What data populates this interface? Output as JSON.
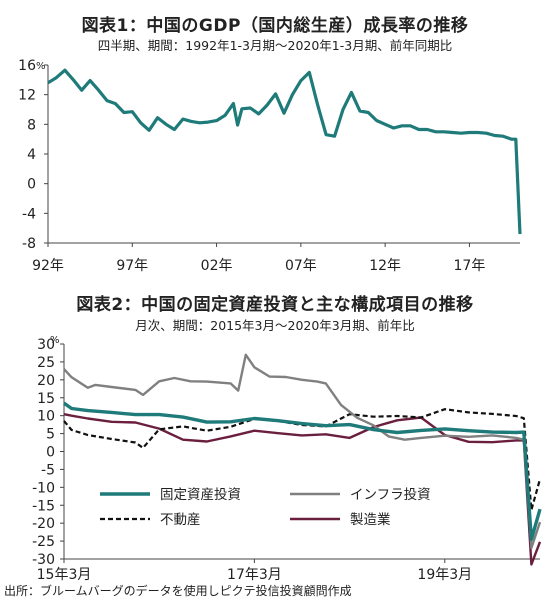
{
  "chart_data": [
    {
      "type": "line",
      "title": "図表1：中国のGDP（国内総生産）成長率の推移",
      "subtitle": "四半期、期間：1992年1-3月期～2020年1-3月期、前年同期比",
      "unit": "%",
      "x_tick_labels": [
        "92年",
        "97年",
        "02年",
        "07年",
        "12年",
        "17年"
      ],
      "y_tick_labels": [
        "16",
        "12",
        "8",
        "4",
        "0",
        "-4",
        "-8"
      ],
      "x_range": [
        1992.0,
        2020.0
      ],
      "ylim": [
        -8,
        16
      ],
      "grid": false,
      "colors": {
        "series": "#1f7a7a"
      },
      "series": [
        {
          "x": [
            1992.0,
            1992.5,
            1993.0,
            1993.5,
            1994.0,
            1994.5,
            1995.0,
            1995.5,
            1996.0,
            1996.5,
            1997.0,
            1997.5,
            1998.0,
            1998.5,
            1999.0,
            1999.5,
            2000.0,
            2000.5,
            2001.0,
            2001.5,
            2002.0,
            2002.5,
            2003.0,
            2003.25,
            2003.5,
            2004.0,
            2004.5,
            2005.0,
            2005.5,
            2006.0,
            2006.5,
            2007.0,
            2007.5,
            2008.0,
            2008.5,
            2009.0,
            2009.5,
            2010.0,
            2010.5,
            2011.0,
            2011.5,
            2012.0,
            2012.5,
            2013.0,
            2013.5,
            2014.0,
            2014.5,
            2015.0,
            2015.5,
            2016.0,
            2016.5,
            2017.0,
            2017.5,
            2018.0,
            2018.5,
            2019.0,
            2019.5,
            2019.75,
            2020.0
          ],
          "values": [
            13.6,
            14.3,
            15.3,
            14.0,
            12.6,
            13.9,
            12.6,
            11.2,
            10.8,
            9.6,
            9.7,
            8.2,
            7.2,
            8.9,
            8.0,
            7.3,
            8.7,
            8.4,
            8.2,
            8.3,
            8.5,
            9.2,
            10.8,
            7.9,
            10.1,
            10.2,
            9.4,
            10.6,
            12.1,
            9.5,
            12.0,
            13.9,
            15.0,
            10.6,
            6.6,
            6.4,
            10.0,
            12.3,
            9.8,
            9.6,
            8.5,
            8.0,
            7.5,
            7.8,
            7.8,
            7.3,
            7.3,
            7.0,
            7.0,
            6.9,
            6.8,
            6.9,
            6.9,
            6.8,
            6.5,
            6.4,
            6.0,
            6.0,
            -6.8
          ]
        }
      ]
    },
    {
      "type": "line",
      "title": "図表2：中国の固定資産投資と主な構成項目の推移",
      "subtitle": "月次、期間：2015年3月～2020年3月期、前年比",
      "unit": "%",
      "x_tick_labels": [
        "15年3月",
        "17年3月",
        "19年3月"
      ],
      "y_tick_labels": [
        "30",
        "25",
        "20",
        "15",
        "10",
        "5",
        "0",
        "-5",
        "-10",
        "-15",
        "-20",
        "-25",
        "-30"
      ],
      "x_range": [
        2015.17,
        2020.17
      ],
      "ylim": [
        -30,
        30
      ],
      "grid": false,
      "legend": "bottom-left",
      "series": [
        {
          "name": "固定資産投資",
          "color": "#1f7a7a",
          "style": "solid-thick",
          "x": [
            2015.17,
            2015.25,
            2015.42,
            2015.67,
            2015.92,
            2016.17,
            2016.42,
            2016.67,
            2016.92,
            2017.17,
            2017.42,
            2017.67,
            2017.92,
            2018.17,
            2018.42,
            2018.67,
            2018.92,
            2019.17,
            2019.42,
            2019.67,
            2019.92,
            2020.0,
            2020.08,
            2020.17
          ],
          "values": [
            13.5,
            12.0,
            11.4,
            10.9,
            10.3,
            10.3,
            9.6,
            8.2,
            8.3,
            9.2,
            8.6,
            7.8,
            7.2,
            7.5,
            6.1,
            5.3,
            5.9,
            6.3,
            5.8,
            5.4,
            5.3,
            5.4,
            -24.5,
            -16.1
          ]
        },
        {
          "name": "インフラ投資",
          "color": "#808080",
          "style": "solid",
          "x": [
            2015.17,
            2015.25,
            2015.42,
            2015.5,
            2015.67,
            2015.92,
            2016.0,
            2016.17,
            2016.33,
            2016.5,
            2016.67,
            2016.92,
            2017.0,
            2017.08,
            2017.17,
            2017.33,
            2017.5,
            2017.67,
            2017.83,
            2017.92,
            2018.08,
            2018.25,
            2018.42,
            2018.58,
            2018.75,
            2018.92,
            2019.17,
            2019.42,
            2019.67,
            2019.92,
            2020.0,
            2020.08,
            2020.17
          ],
          "values": [
            23.0,
            20.7,
            17.8,
            18.6,
            18.0,
            17.2,
            15.8,
            19.6,
            20.5,
            19.6,
            19.5,
            19.0,
            17.0,
            27.0,
            23.5,
            20.9,
            20.8,
            20.0,
            19.5,
            19.0,
            13.0,
            9.4,
            7.3,
            4.2,
            3.3,
            3.8,
            4.4,
            4.1,
            4.5,
            3.8,
            3.3,
            -26.9,
            -19.7
          ]
        },
        {
          "name": "不動産",
          "color": "#111111",
          "style": "dashed",
          "x": [
            2015.17,
            2015.25,
            2015.42,
            2015.67,
            2015.92,
            2016.0,
            2016.17,
            2016.42,
            2016.67,
            2016.92,
            2017.17,
            2017.42,
            2017.67,
            2017.92,
            2018.17,
            2018.42,
            2018.67,
            2018.92,
            2019.17,
            2019.42,
            2019.67,
            2019.92,
            2020.0,
            2020.08,
            2020.17
          ],
          "values": [
            8.5,
            6.0,
            4.6,
            3.5,
            2.5,
            1.0,
            6.2,
            7.0,
            5.8,
            6.9,
            9.1,
            8.5,
            7.4,
            7.0,
            10.4,
            9.7,
            9.9,
            9.5,
            11.8,
            10.9,
            10.5,
            9.9,
            9.3,
            -16.3,
            -7.7
          ]
        },
        {
          "name": "製造業",
          "color": "#6b1f3e",
          "style": "solid",
          "x": [
            2015.17,
            2015.25,
            2015.42,
            2015.67,
            2015.92,
            2016.17,
            2016.42,
            2016.67,
            2016.92,
            2017.17,
            2017.42,
            2017.67,
            2017.92,
            2018.17,
            2018.42,
            2018.67,
            2018.92,
            2019.17,
            2019.42,
            2019.67,
            2019.92,
            2020.0,
            2020.08,
            2020.17
          ],
          "values": [
            10.4,
            10.0,
            9.2,
            8.3,
            8.1,
            6.4,
            3.3,
            2.8,
            4.2,
            5.8,
            5.1,
            4.5,
            4.8,
            3.8,
            6.8,
            8.7,
            9.5,
            4.6,
            2.7,
            2.6,
            3.1,
            3.1,
            -31.5,
            -25.2
          ]
        }
      ]
    }
  ],
  "source": "出所：ブルームバーグのデータを使用しピクテ投信投資顧問作成"
}
